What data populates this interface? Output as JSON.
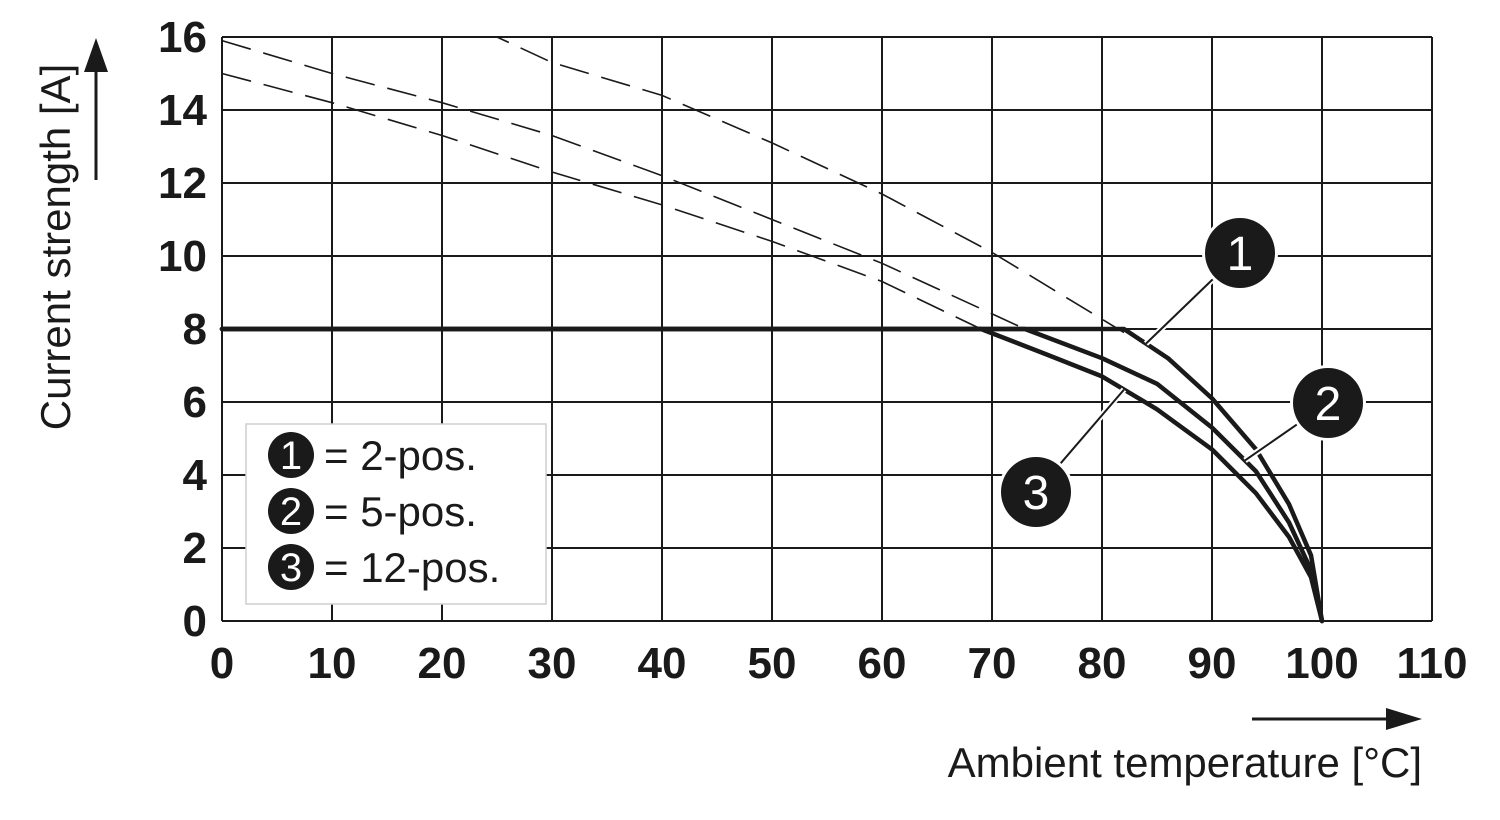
{
  "chart_data": {
    "type": "line",
    "xlabel": "Ambient temperature [°C]",
    "ylabel": "Current strength [A]",
    "xlim": [
      0,
      110
    ],
    "ylim": [
      0,
      16
    ],
    "x_ticks": [
      "0",
      "10",
      "20",
      "30",
      "40",
      "50",
      "60",
      "70",
      "80",
      "90",
      "100",
      "110"
    ],
    "y_ticks": [
      "0",
      "2",
      "4",
      "6",
      "8",
      "10",
      "12",
      "14",
      "16"
    ],
    "grid": true,
    "series": [
      {
        "name": "1",
        "derating": [
          [
            0,
            8
          ],
          [
            82,
            8
          ],
          [
            86,
            7.2
          ],
          [
            90,
            6.1
          ],
          [
            94,
            4.7
          ],
          [
            97,
            3.2
          ],
          [
            99,
            1.8
          ],
          [
            100,
            0
          ]
        ],
        "theoretical": [
          [
            0,
            16
          ],
          [
            25,
            16
          ],
          [
            30,
            15.3
          ],
          [
            40,
            14.4
          ],
          [
            50,
            13.1
          ],
          [
            60,
            11.7
          ],
          [
            70,
            10.1
          ],
          [
            82,
            7.9
          ]
        ]
      },
      {
        "name": "2",
        "derating": [
          [
            0,
            8
          ],
          [
            73,
            8
          ],
          [
            80,
            7.2
          ],
          [
            85,
            6.5
          ],
          [
            90,
            5.3
          ],
          [
            94,
            4.1
          ],
          [
            97,
            2.7
          ],
          [
            99,
            1.4
          ],
          [
            100,
            0
          ]
        ],
        "theoretical": [
          [
            0,
            15.9
          ],
          [
            10,
            15.0
          ],
          [
            20,
            14.2
          ],
          [
            30,
            13.3
          ],
          [
            40,
            12.2
          ],
          [
            50,
            11.0
          ],
          [
            60,
            9.8
          ],
          [
            73,
            8.0
          ]
        ]
      },
      {
        "name": "3",
        "derating": [
          [
            0,
            8
          ],
          [
            69,
            8
          ],
          [
            75,
            7.3
          ],
          [
            80,
            6.7
          ],
          [
            85,
            5.8
          ],
          [
            90,
            4.7
          ],
          [
            94,
            3.5
          ],
          [
            97,
            2.3
          ],
          [
            99,
            1.2
          ],
          [
            100,
            0
          ]
        ],
        "theoretical": [
          [
            0,
            15.0
          ],
          [
            10,
            14.2
          ],
          [
            20,
            13.3
          ],
          [
            30,
            12.3
          ],
          [
            40,
            11.4
          ],
          [
            50,
            10.4
          ],
          [
            60,
            9.3
          ],
          [
            69,
            8.0
          ]
        ]
      }
    ],
    "legend": {
      "placement": "bottom-left",
      "entries": [
        {
          "badge": "1",
          "text": "= 2-pos."
        },
        {
          "badge": "2",
          "text": "= 5-pos."
        },
        {
          "badge": "3",
          "text": "= 12-pos."
        }
      ]
    },
    "callouts": [
      {
        "label": "1",
        "series": "1",
        "at_x": 84
      },
      {
        "label": "2",
        "series": "2",
        "at_x": 93
      },
      {
        "label": "3",
        "series": "3",
        "at_x": 82
      }
    ],
    "colors": {
      "line": "#1a1a1a",
      "grid": "#1a1a1a",
      "badge": "#1a1a1a",
      "badge_text": "#ffffff"
    }
  }
}
